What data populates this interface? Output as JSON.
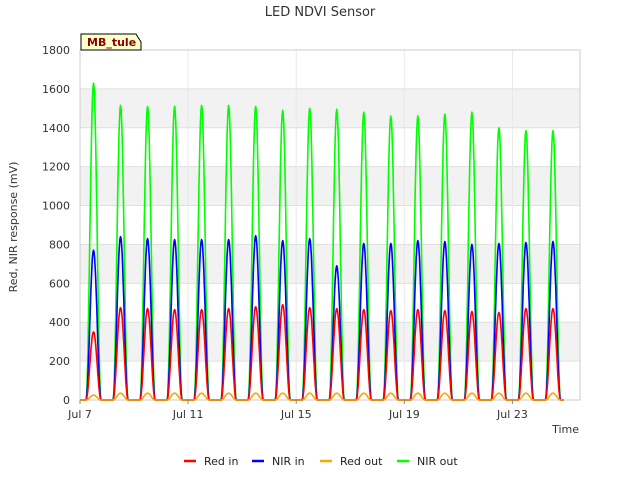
{
  "chart_data": {
    "type": "line",
    "title": "LED NDVI Sensor",
    "xlabel": "Time",
    "ylabel": "Red, NIR response (mV)",
    "site_tag": "MB_tule",
    "ylim": [
      0,
      1800
    ],
    "xlim": [
      7.0,
      25.5
    ],
    "y_ticks": [
      0,
      200,
      400,
      600,
      800,
      1000,
      1200,
      1400,
      1600,
      1800
    ],
    "x_ticks": [
      {
        "value": 7,
        "label": "Jul 7"
      },
      {
        "value": 11,
        "label": "Jul 11"
      },
      {
        "value": 15,
        "label": "Jul 15"
      },
      {
        "value": 19,
        "label": "Jul 19"
      },
      {
        "value": 23,
        "label": "Jul 23"
      }
    ],
    "grid": true,
    "legend_position": "bottom",
    "days": [
      7.5,
      8.5,
      9.5,
      10.5,
      11.5,
      12.5,
      13.5,
      14.5,
      15.5,
      16.5,
      17.5,
      18.5,
      19.5,
      20.5,
      21.5,
      22.5,
      23.5,
      24.5
    ],
    "series": [
      {
        "name": "Red in",
        "color": "#ff0000",
        "daily_peaks": [
          350,
          475,
          470,
          465,
          465,
          470,
          480,
          490,
          475,
          470,
          465,
          460,
          465,
          460,
          455,
          450,
          470,
          470
        ]
      },
      {
        "name": "NIR in",
        "color": "#0000ff",
        "daily_peaks": [
          770,
          840,
          830,
          825,
          825,
          825,
          845,
          820,
          830,
          690,
          805,
          805,
          820,
          815,
          800,
          805,
          810,
          815
        ]
      },
      {
        "name": "Red out",
        "color": "#ffa500",
        "daily_peaks": [
          25,
          35,
          35,
          35,
          35,
          35,
          35,
          35,
          35,
          35,
          35,
          35,
          35,
          35,
          35,
          35,
          35,
          35
        ]
      },
      {
        "name": "NIR out",
        "color": "#00ff00",
        "daily_peaks": [
          1630,
          1515,
          1510,
          1510,
          1515,
          1515,
          1510,
          1490,
          1500,
          1495,
          1480,
          1460,
          1460,
          1470,
          1480,
          1400,
          1385,
          1385
        ]
      }
    ]
  }
}
